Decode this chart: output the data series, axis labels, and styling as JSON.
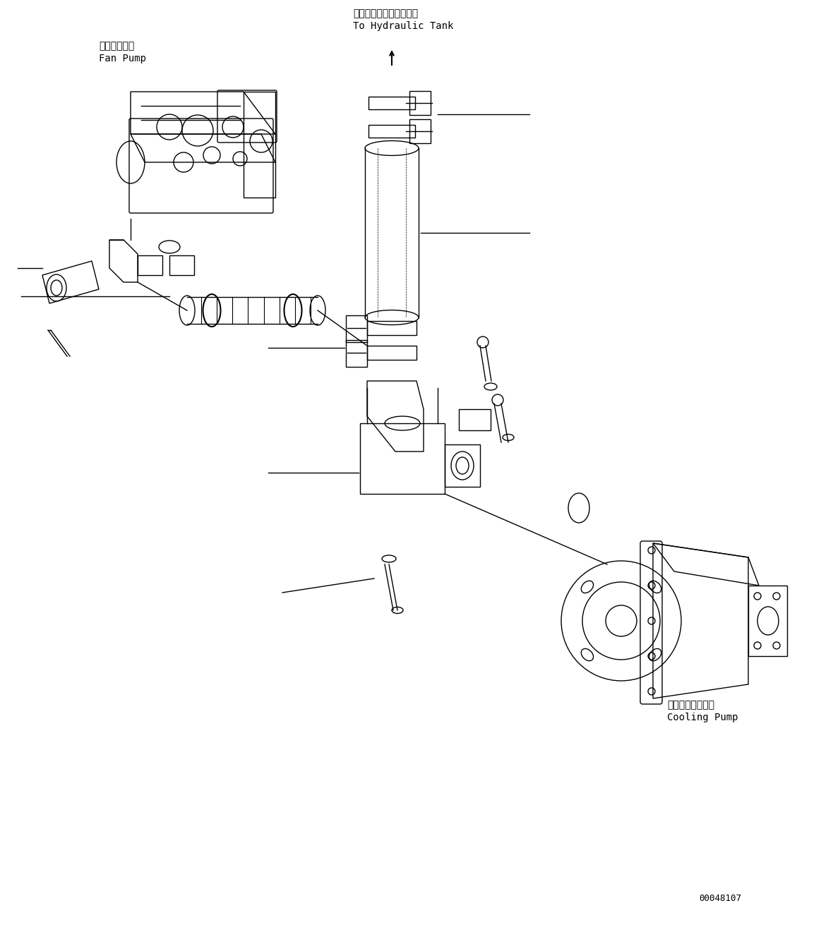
{
  "bg_color": "#ffffff",
  "line_color": "#000000",
  "fig_width": 11.63,
  "fig_height": 13.14,
  "dpi": 100,
  "labels": {
    "fan_pump_jp": "ファンポンプ",
    "fan_pump_en": "Fan Pump",
    "cooling_pump_jp": "クーリングポンプ",
    "cooling_pump_en": "Cooling Pump",
    "hydraulic_jp": "ハイドロリックタンクへ",
    "hydraulic_en": "To Hydraulic Tank",
    "part_number": "00048107"
  },
  "font_size_label": 10,
  "font_size_small": 9
}
